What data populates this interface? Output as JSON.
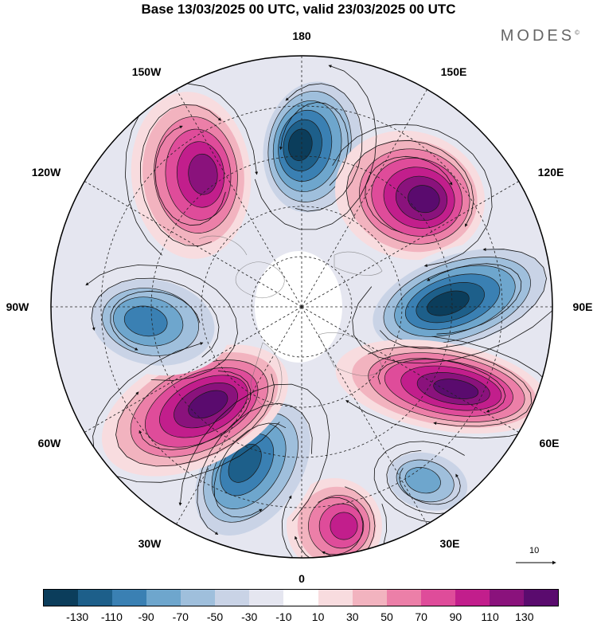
{
  "title": "Base 13/03/2025 00 UTC, valid 23/03/2025 00 UTC",
  "brand": "MODES",
  "brand_mark": "©",
  "longitude_labels": {
    "l180": "180",
    "l150w": "150W",
    "l150e": "150E",
    "l120w": "120W",
    "l120e": "120E",
    "l90w": "90W",
    "l90e": "90E",
    "l60w": "60W",
    "l60e": "60E",
    "l30w": "30W",
    "l30e": "30E",
    "l0": "0"
  },
  "reference_vector_label": "10",
  "colorbar": {
    "colors": [
      "#0b3d5b",
      "#1d5f8a",
      "#3a80b3",
      "#6ea6cd",
      "#9fbfdc",
      "#c9d3e6",
      "#e5e6f0",
      "#ffffff",
      "#f8dcdf",
      "#f2b3bf",
      "#ec7fa8",
      "#df4c9a",
      "#c21e8c",
      "#8a127c",
      "#5a0b6e"
    ],
    "tick_labels": [
      "-130",
      "-110",
      "-90",
      "-70",
      "-50",
      "-30",
      "-10",
      "10",
      "30",
      "50",
      "70",
      "90",
      "110",
      "130"
    ]
  },
  "anomaly_centers": [
    {
      "lon": "180",
      "sign": "negative",
      "peak": -130
    },
    {
      "lon": "135E",
      "sign": "positive",
      "peak": 130
    },
    {
      "lon": "90E",
      "sign": "negative",
      "peak": -130
    },
    {
      "lon": "65E",
      "sign": "positive",
      "peak": 130
    },
    {
      "lon": "35E",
      "sign": "negative",
      "peak": -70
    },
    {
      "lon": "0",
      "sign": "positive",
      "peak": 90
    },
    {
      "lon": "25W",
      "sign": "negative",
      "peak": -110
    },
    {
      "lon": "55W",
      "sign": "positive",
      "peak": 130
    },
    {
      "lon": "95W",
      "sign": "negative",
      "peak": -90
    },
    {
      "lon": "155W",
      "sign": "positive",
      "peak": 110
    }
  ]
}
